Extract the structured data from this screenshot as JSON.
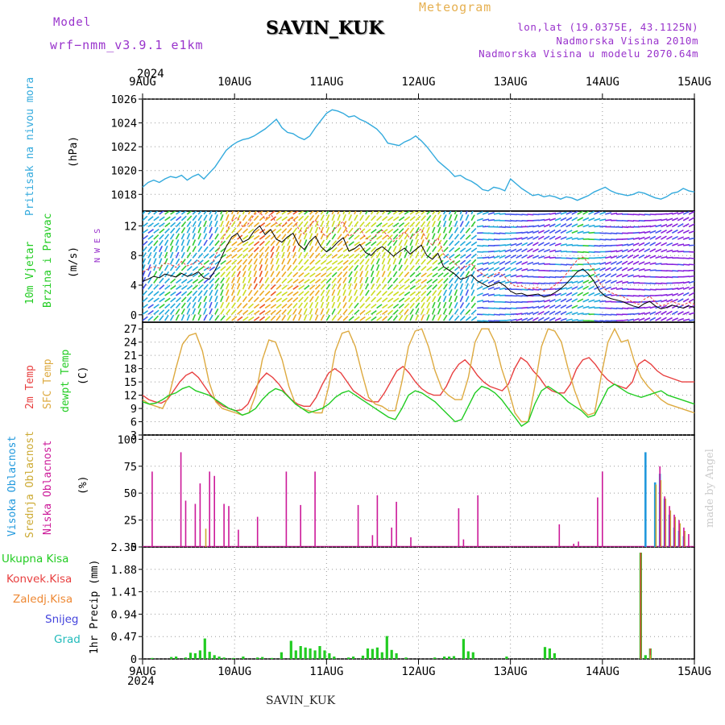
{
  "header": {
    "model_label": "Model",
    "model_name": "wrf−nmm_v3.9.1 e1km",
    "station": "SAVIN_KUK",
    "product": "Meteogram",
    "lonlat": "lon,lat (19.0375E, 43.1125N)",
    "elevation": "Nadmorska Visina 2010m",
    "model_elevation": "Nadmorska Visina u modelu 2070.64m",
    "year": "2024",
    "footer": "SAVIN_KUK",
    "watermark": "made by Angel"
  },
  "colors": {
    "pressure": "#33aadd",
    "t2m": "#e84040",
    "sfc": "#ddaa40",
    "dewpt": "#22cc22",
    "cloud_high": "#2299dd",
    "cloud_mid": "#ccaa33",
    "cloud_low": "#cc1a99",
    "rain_total": "#22cc22",
    "rain_conv": "#e84040",
    "rain_frozen": "#ee8833",
    "snow": "#4444dd",
    "hail": "#22bbbb"
  },
  "chart_data": [
    {
      "type": "line",
      "panel": "pressure",
      "ylabel_main": "Pritisak na nivou mora",
      "unit": "(hPa)",
      "x_start": "2024-08-09T00",
      "x_end": "2024-08-15T00",
      "x_ticks": [
        "9AUG",
        "10AUG",
        "11AUG",
        "12AUG",
        "13AUG",
        "14AUG",
        "15AUG"
      ],
      "ylim": [
        1016.6,
        1026
      ],
      "yticks": [
        "1018",
        "1020",
        "1022",
        "1024",
        "1026"
      ],
      "grid": true,
      "series": [
        {
          "values": [
            1018.6,
            1019.0,
            1019.2,
            1019.0,
            1019.3,
            1019.5,
            1019.4,
            1019.6,
            1019.2,
            1019.5,
            1019.7,
            1019.3,
            1019.8,
            1020.3,
            1021.0,
            1021.7,
            1022.1,
            1022.4,
            1022.6,
            1022.7,
            1022.9,
            1023.2,
            1023.5,
            1023.9,
            1024.3,
            1023.6,
            1023.2,
            1023.1,
            1022.8,
            1022.6,
            1022.9,
            1023.6,
            1024.2,
            1024.8,
            1025.1,
            1025.0,
            1024.8,
            1024.5,
            1024.6,
            1024.3,
            1024.1,
            1023.8,
            1023.5,
            1023.0,
            1022.3,
            1022.2,
            1022.1,
            1022.4,
            1022.6,
            1022.9,
            1022.5,
            1022.0,
            1021.4,
            1020.8,
            1020.4,
            1020.0,
            1019.5,
            1019.6,
            1019.3,
            1019.1,
            1018.8,
            1018.4,
            1018.3,
            1018.6,
            1018.5,
            1018.3,
            1019.3,
            1018.9,
            1018.5,
            1018.2,
            1017.9,
            1018.0,
            1017.8,
            1017.9,
            1017.8,
            1017.6,
            1017.8,
            1017.7,
            1017.5,
            1017.7,
            1017.9,
            1018.2,
            1018.4,
            1018.6,
            1018.3,
            1018.1,
            1018.0,
            1017.9,
            1018.0,
            1018.2,
            1018.1,
            1017.9,
            1017.7,
            1017.6,
            1017.8,
            1018.1,
            1018.2,
            1018.5,
            1018.3,
            1018.2
          ]
        }
      ]
    },
    {
      "type": "line",
      "panel": "wind",
      "ylabel_main": "10m Vjetar",
      "ylabel_sub": "Brzina i Pravac",
      "unit": "(m/s)",
      "compass": "N  W  E  S",
      "ylim": [
        -1,
        14
      ],
      "yticks": [
        "0",
        "4",
        "8",
        "12"
      ],
      "grid": true,
      "series": [
        {
          "name": "speed",
          "values": [
            4.5,
            4.8,
            5.2,
            5.0,
            5.5,
            5.3,
            5.1,
            5.6,
            5.2,
            5.4,
            5.8,
            5.0,
            4.8,
            6.0,
            7.5,
            9.2,
            10.5,
            11.0,
            9.8,
            10.2,
            11.3,
            12.0,
            10.8,
            11.5,
            10.2,
            9.8,
            10.5,
            11.0,
            9.5,
            8.8,
            9.9,
            10.6,
            9.2,
            8.5,
            9.0,
            9.8,
            10.4,
            8.6,
            8.9,
            9.5,
            8.4,
            8.0,
            8.8,
            9.2,
            8.6,
            7.9,
            8.5,
            9.0,
            8.2,
            8.8,
            9.4,
            8.0,
            7.5,
            8.3,
            6.5,
            6.0,
            5.5,
            4.8,
            5.0,
            5.4,
            4.6,
            4.2,
            3.8,
            4.1,
            4.4,
            3.9,
            3.2,
            2.8,
            2.9,
            2.6,
            2.7,
            2.8,
            2.4,
            2.6,
            3.0,
            3.5,
            4.2,
            5.0,
            5.8,
            6.2,
            5.5,
            4.5,
            3.2,
            2.5,
            2.2,
            2.0,
            1.8,
            1.5,
            1.2,
            1.0,
            1.5,
            1.8,
            1.2,
            0.8,
            1.0,
            1.3,
            1.1,
            0.9,
            1.2,
            1.0
          ]
        },
        {
          "name": "gust",
          "values": [
            5.8,
            6.2,
            6.5,
            6.3,
            7.0,
            6.8,
            6.4,
            7.2,
            6.6,
            6.9,
            7.3,
            6.5,
            6.1,
            7.8,
            9.5,
            11.2,
            12.6,
            13.2,
            11.8,
            12.3,
            13.5,
            13.9,
            12.9,
            13.6,
            12.4,
            11.9,
            12.6,
            13.1,
            11.6,
            10.9,
            12.1,
            12.8,
            11.3,
            10.5,
            11.2,
            12.0,
            12.6,
            10.6,
            11.0,
            11.7,
            10.4,
            10.0,
            10.9,
            11.4,
            10.7,
            9.9,
            10.6,
            11.2,
            10.3,
            11.0,
            11.6,
            10.1,
            9.4,
            10.4,
            8.2,
            7.6,
            7.0,
            6.2,
            6.5,
            6.9,
            6.0,
            5.5,
            5.0,
            5.4,
            5.7,
            5.1,
            4.3,
            3.8,
            3.9,
            3.5,
            3.6,
            3.7,
            3.2,
            3.5,
            4.0,
            4.6,
            5.5,
            6.5,
            7.4,
            7.8,
            7.0,
            5.9,
            4.3,
            3.4,
            3.0,
            2.7,
            2.5,
            2.1,
            1.7,
            1.4,
            2.1,
            2.5,
            1.7,
            1.2,
            1.4,
            1.8,
            1.5,
            1.3,
            1.7,
            1.4
          ]
        }
      ]
    },
    {
      "type": "line",
      "panel": "temperature",
      "ylabel_t2m": "2m Temp",
      "ylabel_sfc": "SFC Temp",
      "ylabel_dew": "dewpt Temp",
      "unit": "(C)",
      "ylim": [
        3,
        28.5
      ],
      "yticks": [
        "3",
        "6",
        "9",
        "12",
        "15",
        "18",
        "21",
        "24",
        "27"
      ],
      "grid": true,
      "series": [
        {
          "name": "2m Temp",
          "values": [
            12.0,
            11.0,
            10.5,
            10.2,
            11.0,
            13.0,
            15.0,
            16.5,
            17.2,
            16.0,
            14.0,
            12.0,
            10.5,
            9.5,
            9.0,
            8.5,
            8.7,
            10.0,
            13.0,
            15.5,
            17.0,
            16.0,
            14.5,
            12.5,
            11.0,
            10.0,
            9.5,
            9.5,
            11.5,
            14.5,
            17.0,
            18.0,
            17.0,
            15.0,
            13.0,
            12.0,
            11.0,
            10.5,
            10.5,
            12.5,
            15.0,
            17.5,
            18.5,
            17.0,
            15.0,
            13.5,
            12.5,
            12.0,
            12.0,
            14.0,
            17.0,
            19.0,
            20.0,
            18.5,
            16.5,
            15.0,
            14.0,
            13.5,
            13.0,
            14.5,
            18.0,
            20.5,
            19.5,
            17.5,
            16.0,
            14.0,
            13.0,
            12.5,
            12.5,
            14.5,
            18.0,
            20.0,
            20.5,
            19.0,
            17.0,
            15.5,
            14.5,
            14.0,
            13.5,
            15.0,
            19.0,
            20.0,
            19.0,
            17.5,
            16.5,
            16.0,
            15.5,
            15.0,
            15.0,
            15.0
          ]
        },
        {
          "name": "SFC Temp",
          "values": [
            11.0,
            10.0,
            9.5,
            9.0,
            12.0,
            18.0,
            23.5,
            25.5,
            26.0,
            22.0,
            15.0,
            10.5,
            9.0,
            8.5,
            8.0,
            7.5,
            8.0,
            12.0,
            20.0,
            24.5,
            24.0,
            20.0,
            14.0,
            10.0,
            9.0,
            8.5,
            8.0,
            8.0,
            14.0,
            22.0,
            26.0,
            26.5,
            23.0,
            17.0,
            11.5,
            10.0,
            9.5,
            8.5,
            8.5,
            15.0,
            23.0,
            26.5,
            27.0,
            23.0,
            17.5,
            13.5,
            12.0,
            11.0,
            11.0,
            16.0,
            24.0,
            27.0,
            27.0,
            24.0,
            18.0,
            13.5,
            8.0,
            6.0,
            6.0,
            14.0,
            23.0,
            27.0,
            26.5,
            24.0,
            18.0,
            13.0,
            9.0,
            7.5,
            8.0,
            16.5,
            24.0,
            27.0,
            24.0,
            24.5,
            19.5,
            16.0,
            14.0,
            12.5,
            11.0,
            10.0,
            9.5,
            9.0,
            8.5,
            8.0
          ]
        },
        {
          "name": "dewpt Temp",
          "values": [
            10.5,
            10.0,
            10.2,
            11.0,
            12.0,
            12.5,
            13.5,
            14.0,
            13.0,
            12.5,
            12.0,
            11.0,
            10.0,
            9.0,
            8.5,
            7.5,
            8.0,
            9.0,
            11.0,
            12.5,
            13.5,
            13.0,
            11.5,
            10.0,
            9.0,
            8.0,
            8.5,
            9.0,
            10.0,
            11.5,
            12.5,
            13.0,
            12.0,
            11.0,
            10.0,
            9.0,
            8.0,
            7.0,
            6.5,
            9.0,
            12.0,
            13.0,
            12.5,
            11.5,
            10.5,
            9.0,
            7.5,
            6.0,
            6.5,
            9.5,
            12.5,
            14.0,
            13.5,
            12.5,
            11.0,
            9.0,
            7.0,
            5.0,
            6.0,
            10.0,
            13.0,
            14.0,
            13.0,
            12.0,
            10.5,
            9.5,
            8.5,
            7.0,
            7.5,
            10.5,
            13.5,
            14.5,
            13.5,
            12.5,
            12.0,
            11.5,
            12.0,
            12.5,
            13.0,
            12.0,
            11.5,
            11.0,
            10.5,
            10.0
          ]
        }
      ]
    },
    {
      "type": "bar",
      "panel": "clouds",
      "ylabel_high": "Visoka Oblacnost",
      "ylabel_mid": "Srednja Oblacnost",
      "ylabel_low": "Niska Oblacnost",
      "unit": "(%)",
      "ylim": [
        0,
        104
      ],
      "yticks": [
        "0",
        "25",
        "50",
        "75",
        "100"
      ],
      "grid": true,
      "low": [
        [
          2,
          70
        ],
        [
          8,
          88
        ],
        [
          9,
          43
        ],
        [
          11,
          40
        ],
        [
          12,
          59
        ],
        [
          14,
          70
        ],
        [
          15,
          66
        ],
        [
          17,
          40
        ],
        [
          18,
          38
        ],
        [
          20,
          16
        ],
        [
          24,
          28
        ],
        [
          30,
          70
        ],
        [
          33,
          39
        ],
        [
          36,
          70
        ],
        [
          45,
          39
        ],
        [
          48,
          11
        ],
        [
          49,
          48
        ],
        [
          52,
          18
        ],
        [
          53,
          42
        ],
        [
          56,
          9
        ],
        [
          66,
          36
        ],
        [
          67,
          7
        ],
        [
          70,
          48
        ],
        [
          87,
          21
        ],
        [
          90,
          3
        ],
        [
          91,
          5
        ],
        [
          95,
          46
        ],
        [
          96,
          70
        ],
        [
          108,
          75
        ],
        [
          109,
          47
        ],
        [
          110,
          38
        ],
        [
          111,
          30
        ],
        [
          112,
          25
        ],
        [
          113,
          18
        ],
        [
          114,
          12
        ]
      ],
      "mid": [
        [
          13,
          17
        ],
        [
          107,
          58
        ],
        [
          108,
          62
        ],
        [
          109,
          45
        ],
        [
          110,
          34
        ],
        [
          111,
          28
        ],
        [
          112,
          22
        ],
        [
          113,
          15
        ]
      ],
      "high": [
        [
          105,
          88
        ],
        [
          107,
          60
        ],
        [
          108,
          68
        ],
        [
          109,
          45
        ],
        [
          110,
          30
        ],
        [
          111,
          18
        ],
        [
          112,
          15
        ],
        [
          113,
          10
        ]
      ]
    },
    {
      "type": "bar",
      "panel": "precip",
      "ylabel": "1hr Precip (mm)",
      "legend": [
        "Ukupna Kisa",
        "Konvek.Kisa",
        "Zaledj.Kisa",
        "Snijeg",
        "Grad"
      ],
      "ylim": [
        0,
        2.35
      ],
      "yticks": [
        "0",
        "0.47",
        "0.94",
        "1.41",
        "1.88",
        "2.35"
      ],
      "grid": true,
      "total": [
        [
          2,
          0.02
        ],
        [
          6,
          0.04
        ],
        [
          7,
          0.05
        ],
        [
          9,
          0.03
        ],
        [
          10,
          0.13
        ],
        [
          11,
          0.12
        ],
        [
          12,
          0.18
        ],
        [
          13,
          0.43
        ],
        [
          14,
          0.15
        ],
        [
          15,
          0.08
        ],
        [
          16,
          0.05
        ],
        [
          17,
          0.03
        ],
        [
          19,
          0.02
        ],
        [
          21,
          0.05
        ],
        [
          24,
          0.03
        ],
        [
          25,
          0.04
        ],
        [
          27,
          0.02
        ],
        [
          29,
          0.14
        ],
        [
          31,
          0.38
        ],
        [
          32,
          0.18
        ],
        [
          33,
          0.27
        ],
        [
          34,
          0.24
        ],
        [
          35,
          0.22
        ],
        [
          36,
          0.18
        ],
        [
          37,
          0.27
        ],
        [
          38,
          0.18
        ],
        [
          39,
          0.12
        ],
        [
          40,
          0.05
        ],
        [
          43,
          0.03
        ],
        [
          44,
          0.05
        ],
        [
          46,
          0.07
        ],
        [
          47,
          0.22
        ],
        [
          48,
          0.21
        ],
        [
          49,
          0.24
        ],
        [
          50,
          0.14
        ],
        [
          51,
          0.48
        ],
        [
          52,
          0.19
        ],
        [
          53,
          0.12
        ],
        [
          55,
          0.03
        ],
        [
          61,
          0.03
        ],
        [
          63,
          0.05
        ],
        [
          64,
          0.05
        ],
        [
          65,
          0.06
        ],
        [
          67,
          0.42
        ],
        [
          68,
          0.16
        ],
        [
          69,
          0.14
        ],
        [
          76,
          0.05
        ],
        [
          84,
          0.25
        ],
        [
          85,
          0.22
        ],
        [
          86,
          0.12
        ],
        [
          104,
          2.23
        ],
        [
          105,
          0.08
        ],
        [
          106,
          0.22
        ]
      ],
      "convective": [
        [
          104,
          2.23
        ],
        [
          106,
          0.22
        ]
      ],
      "frozen": [
        [
          106,
          0.08
        ]
      ]
    }
  ]
}
